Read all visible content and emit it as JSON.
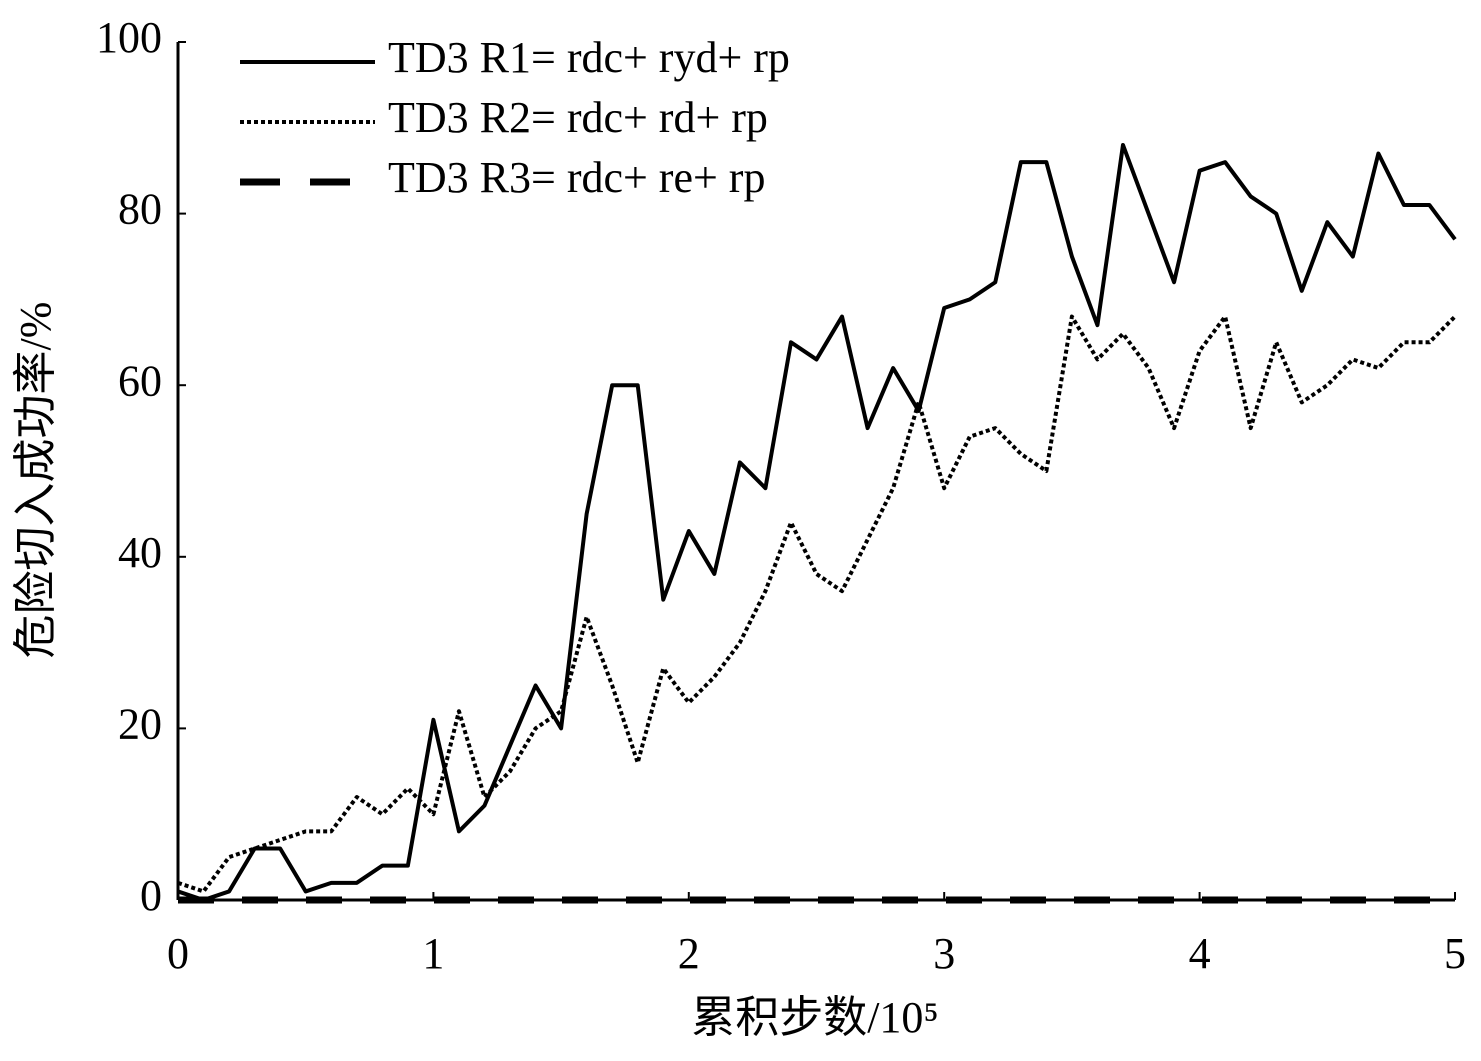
{
  "chart_data": {
    "type": "line",
    "xlabel": "累积步数/10⁵",
    "ylabel": "危险切入成功率/%",
    "x": [
      0,
      0.1,
      0.2,
      0.3,
      0.4,
      0.5,
      0.6,
      0.7,
      0.8,
      0.9,
      1.0,
      1.1,
      1.2,
      1.3,
      1.4,
      1.5,
      1.6,
      1.7,
      1.8,
      1.9,
      2.0,
      2.1,
      2.2,
      2.3,
      2.4,
      2.5,
      2.6,
      2.7,
      2.8,
      2.9,
      3.0,
      3.1,
      3.2,
      3.3,
      3.4,
      3.5,
      3.6,
      3.7,
      3.8,
      3.9,
      4.0,
      4.1,
      4.2,
      4.3,
      4.4,
      4.5,
      4.6,
      4.7,
      4.8,
      4.9,
      5.0
    ],
    "series": [
      {
        "name": "TD3 R1= rdc+ ryd+ rp",
        "color": "#000000",
        "style": "solid",
        "values": [
          1,
          0,
          1,
          6,
          6,
          1,
          2,
          2,
          4,
          4,
          21,
          8,
          11,
          18,
          25,
          20,
          45,
          60,
          60,
          35,
          43,
          38,
          51,
          48,
          65,
          63,
          68,
          55,
          62,
          57,
          69,
          70,
          72,
          86,
          86,
          75,
          67,
          88,
          80,
          72,
          85,
          86,
          82,
          80,
          71,
          79,
          75,
          87,
          81,
          81,
          77
        ]
      },
      {
        "name": "TD3 R2= rdc+ rd+ rp",
        "color": "#000000",
        "style": "dotted",
        "values": [
          2,
          1,
          5,
          6,
          7,
          8,
          8,
          12,
          10,
          13,
          10,
          22,
          12,
          15,
          20,
          22,
          33,
          25,
          16,
          27,
          23,
          26,
          30,
          36,
          44,
          38,
          36,
          42,
          48,
          58,
          48,
          54,
          55,
          52,
          50,
          68,
          63,
          66,
          62,
          55,
          64,
          68,
          55,
          65,
          58,
          60,
          63,
          62,
          65,
          65,
          68
        ]
      },
      {
        "name": "TD3 R3= rdc+ re+ rp",
        "color": "#000000",
        "style": "dashed",
        "values": [
          0,
          0,
          0,
          0,
          0,
          0,
          0,
          0,
          0,
          0,
          0,
          0,
          0,
          0,
          0,
          0,
          0,
          0,
          0,
          0,
          0,
          0,
          0,
          0,
          0,
          0,
          0,
          0,
          0,
          0,
          0,
          0,
          0,
          0,
          0,
          0,
          0,
          0,
          0,
          0,
          0,
          0,
          0,
          0,
          0,
          0,
          0,
          0,
          0,
          0,
          0
        ]
      }
    ],
    "xlim": [
      0,
      5
    ],
    "xticks": [
      0,
      1,
      2,
      3,
      4,
      5
    ],
    "ylim": [
      0,
      100
    ],
    "yticks": [
      0,
      20,
      40,
      60,
      80,
      100
    ],
    "grid": false,
    "legend": "upper left"
  }
}
